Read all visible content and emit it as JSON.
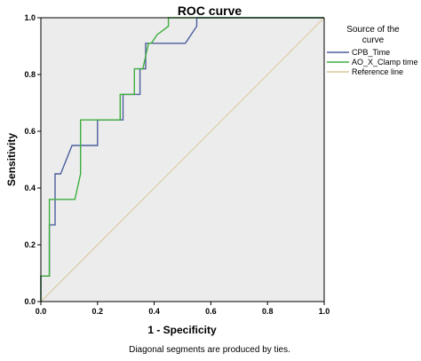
{
  "chart_data": {
    "type": "line",
    "title": "ROC curve",
    "xlabel": "1 - Specificity",
    "ylabel": "Sensitivity",
    "xlim": [
      0,
      1
    ],
    "ylim": [
      0,
      1
    ],
    "xticks": [
      "0.0",
      "0.2",
      "0.4",
      "0.6",
      "0.8",
      "1.0"
    ],
    "yticks": [
      "0.0",
      "0.2",
      "0.4",
      "0.6",
      "0.8",
      "1.0"
    ],
    "grid": false,
    "plot_background": "#ececec",
    "legend": {
      "title_lines": [
        "Source of the",
        "curve"
      ],
      "placement": "right"
    },
    "series": [
      {
        "name": "CPB_Time",
        "color": "#4b5e9c",
        "x": [
          0,
          0,
          0.03,
          0.03,
          0.05,
          0.05,
          0.07,
          0.07,
          0.11,
          0.11,
          0.2,
          0.2,
          0.29,
          0.29,
          0.33,
          0.33,
          0.35,
          0.35,
          0.37,
          0.37,
          0.51,
          0.55,
          0.55,
          1.0
        ],
        "y": [
          0,
          0.09,
          0.09,
          0.27,
          0.27,
          0.45,
          0.45,
          0.45,
          0.55,
          0.55,
          0.55,
          0.64,
          0.64,
          0.73,
          0.73,
          0.73,
          0.73,
          0.82,
          0.82,
          0.91,
          0.91,
          0.97,
          1.0,
          1.0
        ]
      },
      {
        "name": "AO_X_Clamp time",
        "color": "#3fae3f",
        "x": [
          0,
          0,
          0.03,
          0.03,
          0.12,
          0.14,
          0.14,
          0.26,
          0.28,
          0.28,
          0.33,
          0.33,
          0.36,
          0.36,
          0.38,
          0.39,
          0.41,
          0.41,
          0.45,
          0.45,
          0.56,
          1.0
        ],
        "y": [
          0,
          0.09,
          0.09,
          0.36,
          0.36,
          0.45,
          0.64,
          0.64,
          0.64,
          0.73,
          0.73,
          0.82,
          0.82,
          0.82,
          0.91,
          0.91,
          0.94,
          0.94,
          0.97,
          1.0,
          1.0,
          1.0
        ]
      },
      {
        "name": "Reference line",
        "color": "#d9c79a",
        "x": [
          0,
          1
        ],
        "y": [
          0,
          1
        ]
      }
    ],
    "annotations": [
      "Diagonal segments are produced by ties."
    ]
  }
}
